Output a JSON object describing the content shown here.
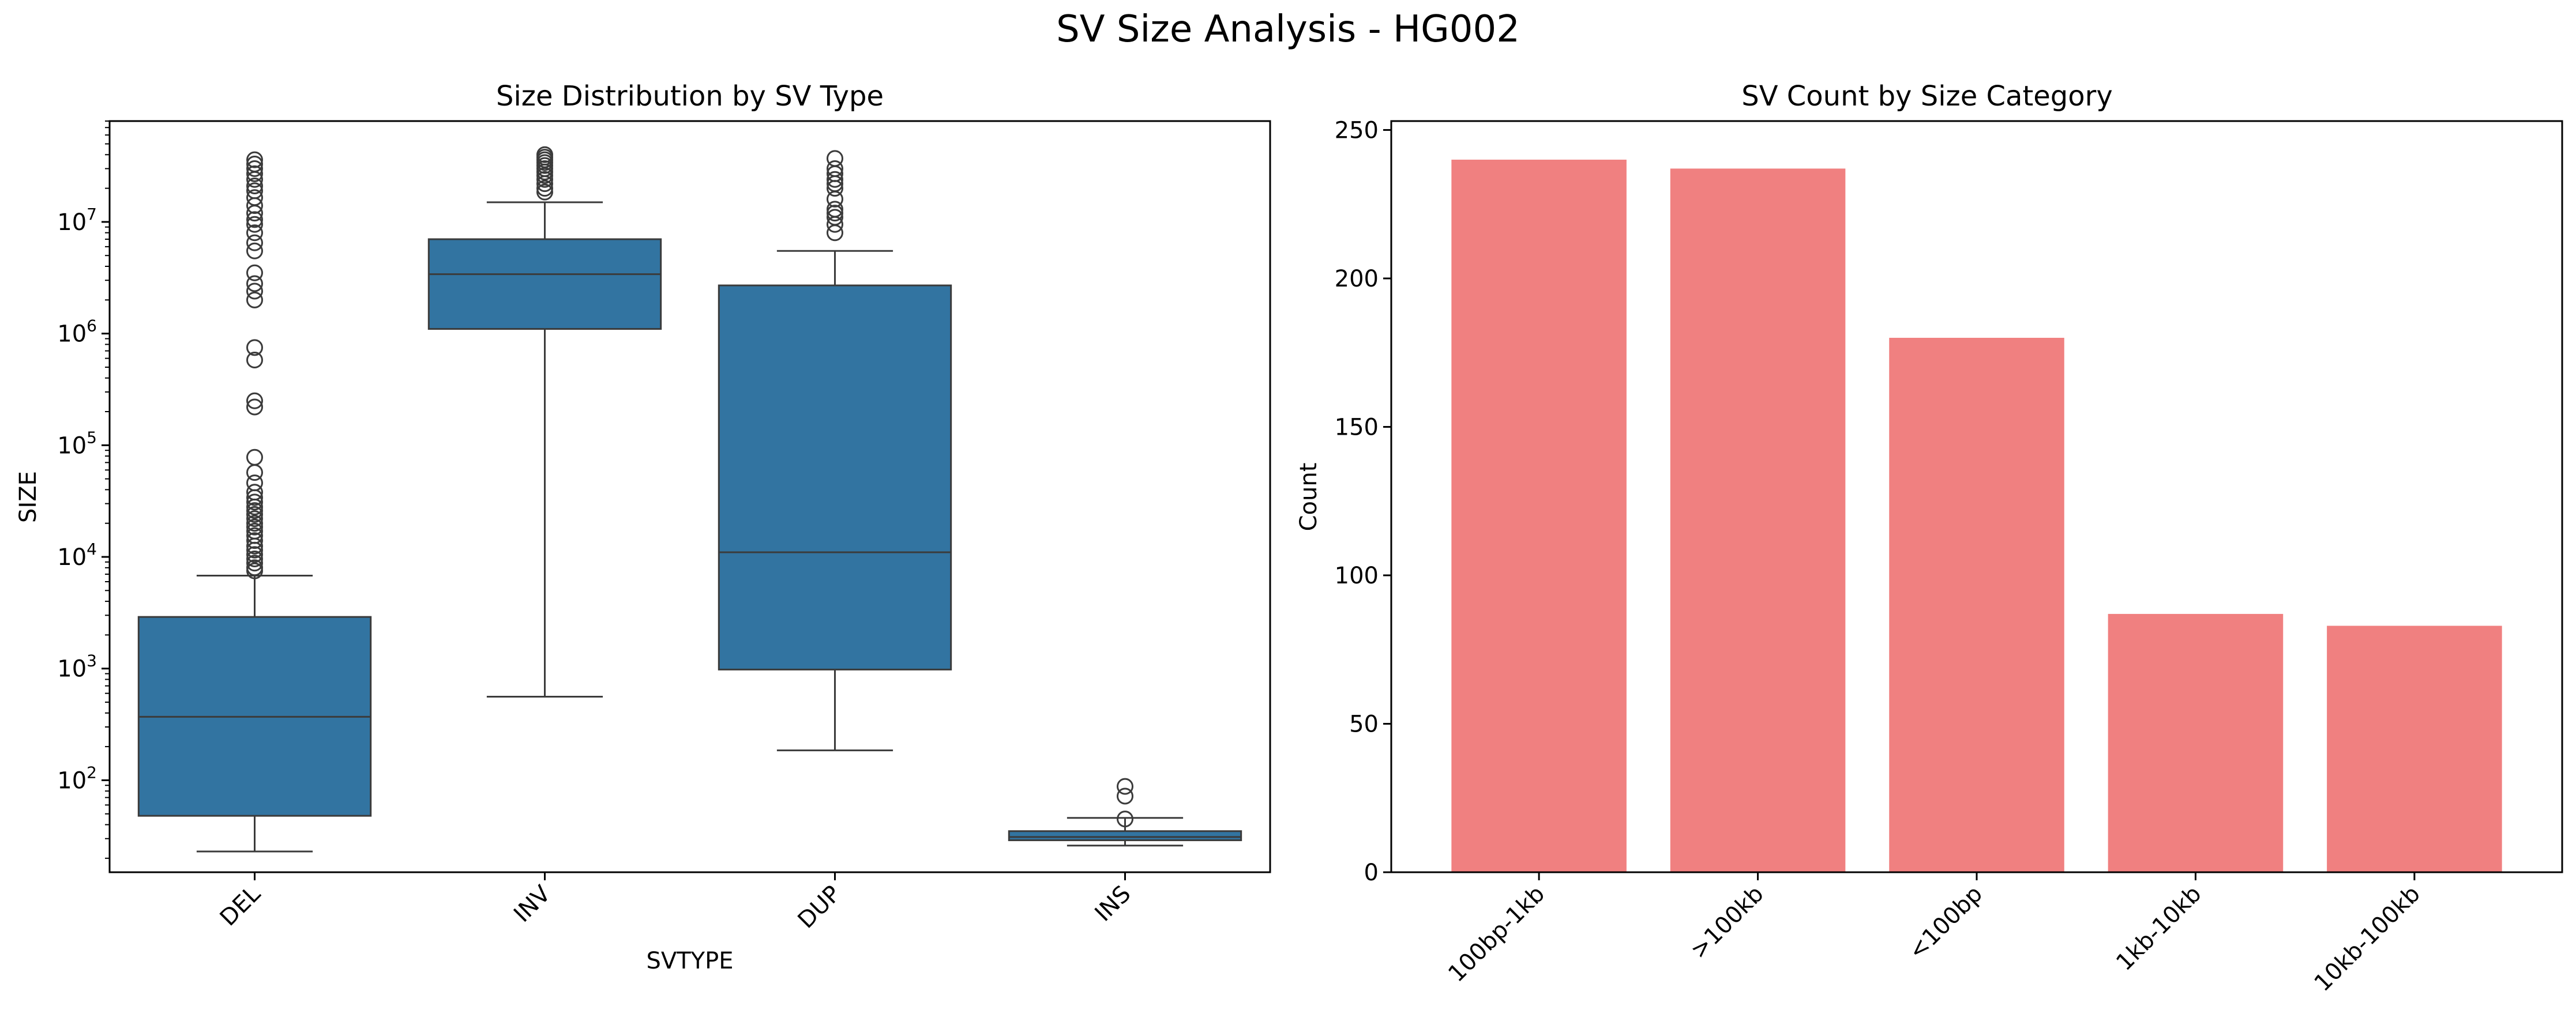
{
  "figure": {
    "title": "SV Size Analysis - HG002"
  },
  "chart_data": [
    {
      "type": "box",
      "title": "Size Distribution by SV Type",
      "xlabel": "SVTYPE",
      "ylabel": "SIZE",
      "yscale": "log",
      "ylim": [
        15,
        80000000
      ],
      "ytick_values": [
        100,
        1000,
        10000,
        100000,
        1000000,
        10000000
      ],
      "ytick_labels": [
        {
          "base": "10",
          "exp": "2"
        },
        {
          "base": "10",
          "exp": "3"
        },
        {
          "base": "10",
          "exp": "4"
        },
        {
          "base": "10",
          "exp": "5"
        },
        {
          "base": "10",
          "exp": "6"
        },
        {
          "base": "10",
          "exp": "7"
        }
      ],
      "box_color": "#3274a1",
      "categories": [
        "DEL",
        "INV",
        "DUP",
        "INS"
      ],
      "boxes": [
        {
          "category": "DEL",
          "whisker_low": 23,
          "q1": 48,
          "median": 370,
          "q3": 2900,
          "whisker_high": 6800,
          "outliers": [
            36000000,
            33000000,
            30000000,
            27000000,
            24000000,
            21000000,
            19000000,
            16500000,
            14000000,
            12000000,
            10500000,
            9500000,
            8000000,
            6500000,
            5500000,
            3500000,
            2800000,
            2400000,
            2000000,
            750000,
            580000,
            250000,
            220000,
            78000,
            57000,
            46000,
            38000,
            34000,
            31000,
            28000,
            26000,
            24000,
            22000,
            20000,
            18500,
            17000,
            15500,
            14000,
            12500,
            11500,
            10500,
            9600,
            8800,
            8000,
            7500
          ]
        },
        {
          "category": "INV",
          "whisker_low": 560,
          "q1": 1100000,
          "median": 3400000,
          "q3": 7000000,
          "whisker_high": 15000000,
          "outliers": [
            40000000,
            38000000,
            36000000,
            34000000,
            32000000,
            30000000,
            28000000,
            26000000,
            24000000,
            22000000,
            20000000,
            18500000
          ]
        },
        {
          "category": "DUP",
          "whisker_low": 185,
          "q1": 980,
          "median": 11000,
          "q3": 2700000,
          "whisker_high": 5500000,
          "outliers": [
            37000000,
            30000000,
            27000000,
            24000000,
            22000000,
            20000000,
            16000000,
            13000000,
            12000000,
            11000000,
            9500000,
            8000000
          ]
        },
        {
          "category": "INS",
          "whisker_low": 26,
          "q1": 29,
          "median": 31,
          "q3": 35,
          "whisker_high": 46,
          "outliers": [
            88,
            72,
            45
          ]
        }
      ]
    },
    {
      "type": "bar",
      "title": "SV Count by Size Category",
      "xlabel": "",
      "ylabel": "Count",
      "ylim": [
        0,
        253
      ],
      "yticks": [
        0,
        50,
        100,
        150,
        200,
        250
      ],
      "bar_color": "#f08080",
      "categories": [
        "100bp-1kb",
        ">100kb",
        "<100bp",
        "1kb-10kb",
        "10kb-100kb"
      ],
      "values": [
        240,
        237,
        180,
        87,
        83
      ]
    }
  ]
}
